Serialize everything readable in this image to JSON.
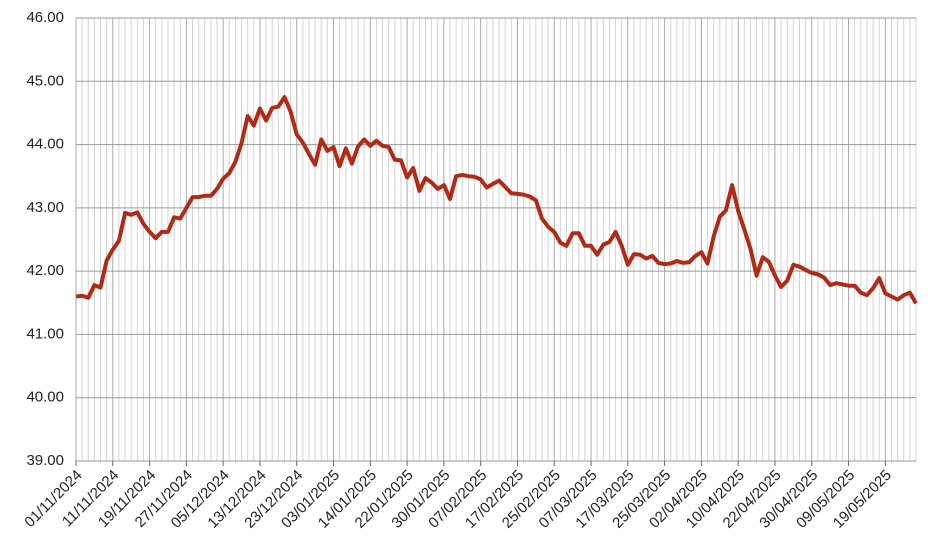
{
  "chart_data": {
    "type": "line",
    "categories": [
      "01/11/2024",
      null,
      null,
      null,
      null,
      null,
      "11/11/2024",
      null,
      null,
      null,
      null,
      null,
      "19/11/2024",
      null,
      null,
      null,
      null,
      null,
      "27/11/2024",
      null,
      null,
      null,
      null,
      null,
      "05/12/2024",
      null,
      null,
      null,
      null,
      null,
      "13/12/2024",
      null,
      null,
      null,
      null,
      null,
      "23/12/2024",
      null,
      null,
      null,
      null,
      null,
      "03/01/2025",
      null,
      null,
      null,
      null,
      null,
      "14/01/2025",
      null,
      null,
      null,
      null,
      null,
      "22/01/2025",
      null,
      null,
      null,
      null,
      null,
      "30/01/2025",
      null,
      null,
      null,
      null,
      null,
      "07/02/2025",
      null,
      null,
      null,
      null,
      null,
      "17/02/2025",
      null,
      null,
      null,
      null,
      null,
      "25/02/2025",
      null,
      null,
      null,
      null,
      null,
      "07/03/2025",
      null,
      null,
      null,
      null,
      null,
      "17/03/2025",
      null,
      null,
      null,
      null,
      null,
      "25/03/2025",
      null,
      null,
      null,
      null,
      null,
      "02/04/2025",
      null,
      null,
      null,
      null,
      null,
      "10/04/2025",
      null,
      null,
      null,
      null,
      null,
      "22/04/2025",
      null,
      null,
      null,
      null,
      null,
      "30/04/2025",
      null,
      null,
      null,
      null,
      null,
      "09/05/2025",
      null,
      null,
      null,
      null,
      null,
      "19/05/2025",
      null,
      null,
      null,
      null,
      null
    ],
    "series": [
      {
        "color": "#b02a16",
        "values": [
          41.6,
          41.61,
          41.58,
          41.78,
          41.74,
          42.17,
          42.34,
          42.48,
          42.92,
          42.89,
          42.93,
          42.75,
          42.62,
          42.52,
          42.62,
          42.62,
          42.85,
          42.83,
          43.0,
          43.17,
          43.17,
          43.19,
          43.19,
          43.3,
          43.46,
          43.55,
          43.73,
          44.02,
          44.45,
          44.3,
          44.57,
          44.38,
          44.58,
          44.6,
          44.75,
          44.52,
          44.16,
          44.03,
          43.85,
          43.68,
          44.08,
          43.9,
          43.96,
          43.66,
          43.94,
          43.7,
          43.97,
          44.08,
          43.98,
          44.06,
          43.98,
          43.96,
          43.76,
          43.75,
          43.48,
          43.63,
          43.27,
          43.47,
          43.4,
          43.3,
          43.36,
          43.14,
          43.5,
          43.52,
          43.5,
          43.49,
          43.45,
          43.32,
          43.38,
          43.43,
          43.33,
          43.23,
          43.22,
          43.21,
          43.18,
          43.12,
          42.83,
          42.7,
          42.62,
          42.45,
          42.4,
          42.6,
          42.6,
          42.4,
          42.4,
          42.26,
          42.42,
          42.46,
          42.62,
          42.4,
          42.1,
          42.27,
          42.26,
          42.2,
          42.24,
          42.13,
          42.11,
          42.12,
          42.16,
          42.13,
          42.14,
          42.24,
          42.3,
          42.12,
          42.55,
          42.86,
          42.96,
          43.36,
          42.95,
          42.66,
          42.35,
          41.93,
          42.22,
          42.15,
          41.93,
          41.75,
          41.85,
          42.1,
          42.07,
          42.02,
          41.97,
          41.95,
          41.9,
          41.78,
          41.81,
          41.79,
          41.77,
          41.77,
          41.66,
          41.62,
          41.73,
          41.89,
          41.65,
          41.6,
          41.55,
          41.62,
          41.66,
          41.49
        ]
      }
    ],
    "ylim": [
      39,
      46
    ],
    "yticks": [
      {
        "value": 39,
        "label": "39.00"
      },
      {
        "value": 40,
        "label": "40.00"
      },
      {
        "value": 41,
        "label": "41.00"
      },
      {
        "value": 42,
        "label": "42.00"
      },
      {
        "value": 43,
        "label": "43.00"
      },
      {
        "value": 44,
        "label": "44.00"
      },
      {
        "value": 45,
        "label": "45.00"
      },
      {
        "value": 46,
        "label": "46.00"
      }
    ],
    "grid": true
  }
}
